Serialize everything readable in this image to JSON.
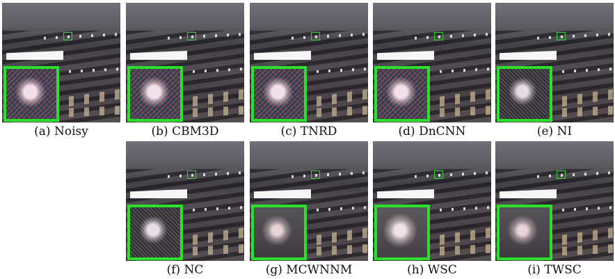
{
  "panels": [
    {
      "caption": "(a) Noisy"
    },
    {
      "caption": "(b) CBM3D"
    },
    {
      "caption": "(c) TNRD"
    },
    {
      "caption": "(d) DnCNN"
    },
    {
      "caption": "(e) NI"
    },
    {
      "caption": "(f) NC"
    },
    {
      "caption": "(g) MCWNNM"
    },
    {
      "caption": "(h) WSC"
    },
    {
      "caption": "(i) TWSC"
    }
  ],
  "colors": {
    "highlight_box": "#2be02b"
  }
}
